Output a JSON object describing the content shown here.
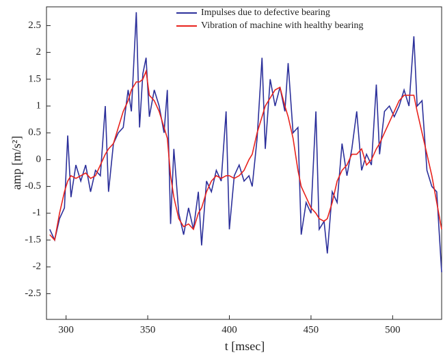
{
  "chart_data": {
    "type": "line",
    "xlabel": "t [msec]",
    "ylabel": "amp [m/s²]",
    "x": [
      290,
      293,
      296,
      299,
      301,
      303,
      306,
      309,
      312,
      315,
      318,
      321,
      324,
      326,
      329,
      332,
      335,
      338,
      340,
      343,
      345,
      347,
      349,
      351,
      354,
      357,
      360,
      362,
      364,
      366,
      369,
      372,
      375,
      378,
      381,
      383,
      386,
      389,
      392,
      395,
      398,
      400,
      403,
      406,
      409,
      412,
      414,
      417,
      420,
      422,
      425,
      428,
      431,
      434,
      436,
      439,
      442,
      444,
      447,
      450,
      453,
      455,
      458,
      460,
      463,
      466,
      469,
      472,
      475,
      478,
      481,
      484,
      487,
      490,
      492,
      495,
      498,
      501,
      504,
      507,
      510,
      513,
      515,
      518,
      521,
      524,
      527,
      530
    ],
    "series": [
      {
        "name": "Impulses due to defective bearing",
        "color": "#2b2f9a",
        "values": [
          -1.3,
          -1.5,
          -1.1,
          -0.9,
          0.45,
          -0.7,
          -0.1,
          -0.4,
          -0.1,
          -0.6,
          -0.2,
          -0.3,
          1.0,
          -0.6,
          0.3,
          0.5,
          0.6,
          1.3,
          0.9,
          2.75,
          0.6,
          1.6,
          1.9,
          0.8,
          1.3,
          1.0,
          0.5,
          1.3,
          -1.2,
          0.2,
          -1.0,
          -1.4,
          -0.9,
          -1.3,
          -0.6,
          -1.6,
          -0.4,
          -0.6,
          -0.2,
          -0.4,
          0.9,
          -1.3,
          -0.3,
          -0.1,
          -0.4,
          -0.3,
          -0.5,
          0.4,
          1.9,
          0.2,
          1.5,
          1.0,
          1.35,
          0.9,
          1.8,
          0.5,
          0.6,
          -1.4,
          -0.8,
          -1.0,
          0.9,
          -1.3,
          -1.15,
          -1.75,
          -0.6,
          -0.8,
          0.3,
          -0.3,
          0.2,
          0.9,
          -0.2,
          0.1,
          -0.1,
          1.4,
          0.1,
          0.9,
          1.0,
          0.8,
          1.0,
          1.3,
          1.0,
          2.3,
          1.0,
          1.1,
          -0.2,
          -0.5,
          -0.6,
          -2.1
        ]
      },
      {
        "name": "Vibration of machine with healthy bearing",
        "color": "#e8221c",
        "values": [
          -1.4,
          -1.5,
          -1.0,
          -0.6,
          -0.4,
          -0.3,
          -0.35,
          -0.3,
          -0.25,
          -0.35,
          -0.3,
          -0.1,
          0.1,
          0.2,
          0.3,
          0.6,
          0.9,
          1.1,
          1.3,
          1.45,
          1.45,
          1.5,
          1.65,
          1.2,
          1.1,
          0.9,
          0.6,
          0.4,
          -0.3,
          -0.7,
          -1.1,
          -1.25,
          -1.2,
          -1.3,
          -1.0,
          -0.9,
          -0.6,
          -0.4,
          -0.3,
          -0.35,
          -0.3,
          -0.3,
          -0.35,
          -0.3,
          -0.2,
          0,
          0.1,
          0.5,
          0.8,
          1.0,
          1.15,
          1.3,
          1.35,
          1.0,
          0.8,
          0.4,
          -0.2,
          -0.5,
          -0.7,
          -0.9,
          -1.0,
          -1.1,
          -1.15,
          -1.1,
          -0.8,
          -0.4,
          -0.2,
          -0.1,
          0.1,
          0.1,
          0.2,
          -0.1,
          0.0,
          0.2,
          0.3,
          0.5,
          0.7,
          0.9,
          1.1,
          1.2,
          1.2,
          1.2,
          0.9,
          0.5,
          0.1,
          -0.3,
          -0.8,
          -1.3
        ]
      }
    ],
    "xlim": [
      288,
      530
    ],
    "ylim": [
      -2.98,
      2.85
    ],
    "xticks": [
      300,
      350,
      400,
      450,
      500
    ],
    "yticks": [
      -2.5,
      -2,
      -1.5,
      -1,
      -0.5,
      0,
      0.5,
      1,
      1.5,
      2,
      2.5
    ],
    "legend": "upper right"
  }
}
